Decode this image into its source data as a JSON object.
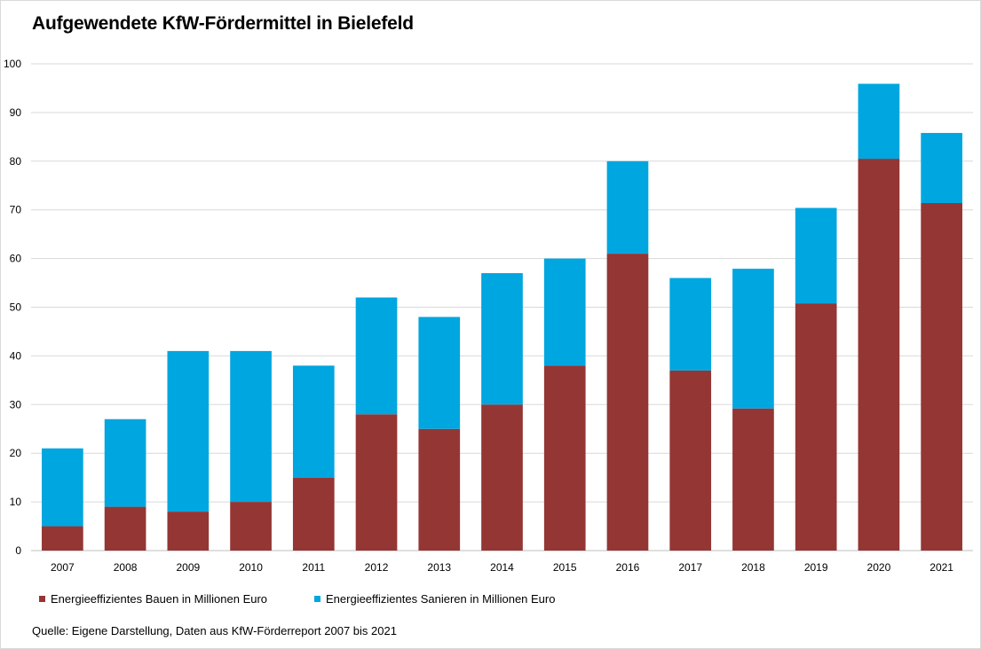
{
  "chart_data": {
    "type": "bar",
    "stacked": true,
    "title": "Aufgewendete KfW-Fördermittel in Bielefeld",
    "categories": [
      "2007",
      "2008",
      "2009",
      "2010",
      "2011",
      "2012",
      "2013",
      "2014",
      "2015",
      "2016",
      "2017",
      "2018",
      "2019",
      "2020",
      "2021"
    ],
    "series": [
      {
        "name": "Energieeffizientes Bauen in Millionen Euro",
        "color": "#943634",
        "values": [
          5,
          9,
          8,
          10,
          15,
          28,
          25,
          30,
          38,
          61,
          37,
          29.2,
          50.8,
          80.5,
          71.4
        ]
      },
      {
        "name": "Energieeffizientes Sanieren in Millionen Euro",
        "color": "#00a6df",
        "values": [
          16,
          18,
          33,
          31,
          23,
          24,
          23,
          27,
          22,
          19,
          19,
          28.7,
          19.6,
          15.4,
          14.4
        ]
      }
    ],
    "ylim": [
      0,
      100
    ],
    "yticks": [
      0,
      10,
      20,
      30,
      40,
      50,
      60,
      70,
      80,
      90,
      100
    ],
    "grid": true,
    "legend_position": "bottom-left"
  },
  "source_note": "Quelle: Eigene Darstellung, Daten aus KfW-Förderreport 2007 bis 2021"
}
